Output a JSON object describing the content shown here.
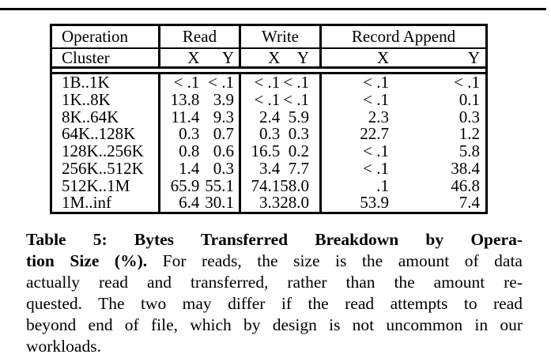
{
  "table": {
    "header": {
      "operation": "Operation",
      "cluster": "Cluster",
      "read": "Read",
      "write": "Write",
      "record_append": "Record Append",
      "x": "X",
      "y": "Y"
    },
    "rows": [
      {
        "op": "1B..1K",
        "read_x": "< .1",
        "read_y": "< .1",
        "write_x": "< .1",
        "write_y": "< .1",
        "ra_x": "< .1",
        "ra_y": "< .1"
      },
      {
        "op": "1K..8K",
        "read_x": "13.8",
        "read_y": "3.9",
        "write_x": "< .1",
        "write_y": "< .1",
        "ra_x": "< .1",
        "ra_y": "0.1"
      },
      {
        "op": "8K..64K",
        "read_x": "11.4",
        "read_y": "9.3",
        "write_x": "2.4",
        "write_y": "5.9",
        "ra_x": "2.3",
        "ra_y": "0.3"
      },
      {
        "op": "64K..128K",
        "read_x": "0.3",
        "read_y": "0.7",
        "write_x": "0.3",
        "write_y": "0.3",
        "ra_x": "22.7",
        "ra_y": "1.2"
      },
      {
        "op": "128K..256K",
        "read_x": "0.8",
        "read_y": "0.6",
        "write_x": "16.5",
        "write_y": "0.2",
        "ra_x": "< .1",
        "ra_y": "5.8"
      },
      {
        "op": "256K..512K",
        "read_x": "1.4",
        "read_y": "0.3",
        "write_x": "3.4",
        "write_y": "7.7",
        "ra_x": "< .1",
        "ra_y": "38.4"
      },
      {
        "op": "512K..1M",
        "read_x": "65.9",
        "read_y": "55.1",
        "write_x": "74.1",
        "write_y": "58.0",
        "ra_x": ".1",
        "ra_y": "46.8"
      },
      {
        "op": "1M..inf",
        "read_x": "6.4",
        "read_y": "30.1",
        "write_x": "3.3",
        "write_y": "28.0",
        "ra_x": "53.9",
        "ra_y": "7.4"
      }
    ]
  },
  "caption": {
    "lines": [
      {
        "bold": "Table 5: Bytes Transferred Breakdown by Opera-",
        "text": ""
      },
      {
        "bold": "tion Size (%).",
        "text": "For reads, the size is the amount of data"
      },
      {
        "bold": "",
        "text": "actually read and transferred, rather than the amount re-"
      },
      {
        "bold": "",
        "text": "quested. The two may differ if the read attempts to read"
      },
      {
        "bold": "",
        "text": "beyond end of file, which by design is not uncommon in our"
      },
      {
        "bold": "",
        "text": "workloads."
      }
    ]
  }
}
